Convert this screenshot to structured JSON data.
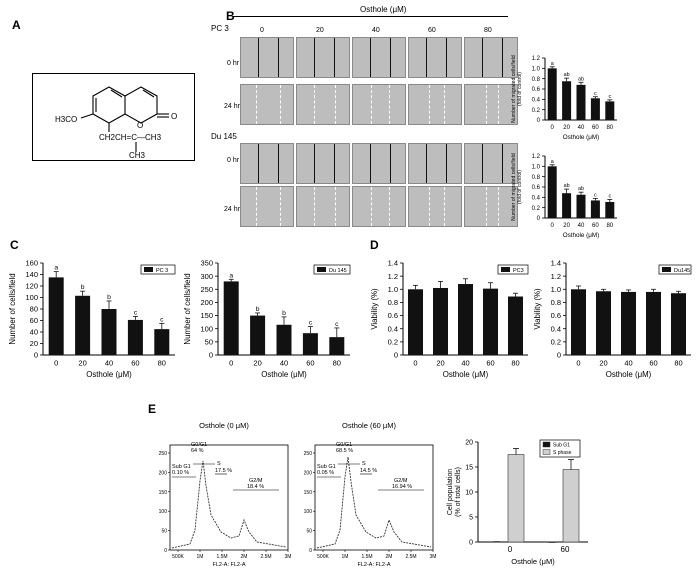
{
  "panels": {
    "A": "A",
    "B": "B",
    "C": "C",
    "D": "D",
    "E": "E"
  },
  "structure": {
    "left_group": "H3CO",
    "side_chain": "CH2CH=C—CH3",
    "methyl": "CH3",
    "carbonyl_O": "O",
    "ring_O": "O"
  },
  "wound": {
    "header": "Osthole (μM)",
    "concentrations": [
      "0",
      "20",
      "40",
      "60",
      "80"
    ],
    "cell_lines": [
      "PC 3",
      "Du 145"
    ],
    "times": [
      "0 hr",
      "24 hr"
    ]
  },
  "chart_data": [
    {
      "id": "B-PC3",
      "type": "bar",
      "categories": [
        "0",
        "20",
        "40",
        "60",
        "80"
      ],
      "values": [
        1.0,
        0.75,
        0.68,
        0.42,
        0.36
      ],
      "errors": [
        0.03,
        0.06,
        0.05,
        0.03,
        0.03
      ],
      "letters": [
        "a",
        "ab",
        "ab",
        "c",
        "c"
      ],
      "ylim": [
        0,
        1.2
      ],
      "yticks": [
        "0",
        "0.2",
        "0.4",
        "0.6",
        "0.8",
        "1.0",
        "1.2"
      ],
      "ylabel": "Number of migrated cells/field (fold of control)",
      "xlabel": "Osthole (μM)"
    },
    {
      "id": "B-Du145",
      "type": "bar",
      "categories": [
        "0",
        "20",
        "40",
        "60",
        "80"
      ],
      "values": [
        1.0,
        0.48,
        0.45,
        0.34,
        0.31
      ],
      "errors": [
        0.03,
        0.08,
        0.05,
        0.04,
        0.05
      ],
      "letters": [
        "a",
        "ab",
        "ab",
        "c",
        "c"
      ],
      "ylim": [
        0,
        1.2
      ],
      "yticks": [
        "0",
        "0.2",
        "0.4",
        "0.6",
        "0.8",
        "1.0",
        "1.2"
      ],
      "ylabel": "Number of migrated cells/field (fold of control)",
      "xlabel": "Osthole (μM)"
    },
    {
      "id": "C-PC3",
      "type": "bar",
      "legend": "PC 3",
      "categories": [
        "0",
        "20",
        "40",
        "60",
        "80"
      ],
      "values": [
        135,
        103,
        80,
        61,
        45
      ],
      "errors": [
        10,
        8,
        14,
        6,
        10
      ],
      "letters": [
        "a",
        "b",
        "b",
        "c",
        "c"
      ],
      "ylim": [
        0,
        160
      ],
      "yticks": [
        "0",
        "20",
        "40",
        "60",
        "80",
        "100",
        "120",
        "140",
        "160"
      ],
      "ylabel": "Number of cells/field",
      "xlabel": "Osthole (μM)"
    },
    {
      "id": "C-Du145",
      "type": "bar",
      "legend": "Du 145",
      "categories": [
        "0",
        "20",
        "40",
        "60",
        "80"
      ],
      "values": [
        280,
        150,
        115,
        83,
        68
      ],
      "errors": [
        8,
        10,
        30,
        25,
        35
      ],
      "letters": [
        "a",
        "b",
        "b",
        "c",
        "c"
      ],
      "ylim": [
        0,
        350
      ],
      "yticks": [
        "0",
        "50",
        "100",
        "150",
        "200",
        "250",
        "300",
        "350"
      ],
      "ylabel": "Number of cells/field",
      "xlabel": "Osthole (μM)"
    },
    {
      "id": "D-PC3",
      "type": "bar",
      "legend": "PC3",
      "categories": [
        "0",
        "20",
        "40",
        "60",
        "80"
      ],
      "values": [
        1.0,
        1.02,
        1.08,
        1.01,
        0.89
      ],
      "errors": [
        0.06,
        0.1,
        0.08,
        0.09,
        0.05
      ],
      "ylim": [
        0,
        1.4
      ],
      "yticks": [
        "0",
        "0.2",
        "0.4",
        "0.6",
        "0.8",
        "1.0",
        "1.2",
        "1.4"
      ],
      "ylabel": "Viability (%)",
      "xlabel": "Osthole (μM)"
    },
    {
      "id": "D-Du145",
      "type": "bar",
      "legend": "Du145",
      "categories": [
        "0",
        "20",
        "40",
        "60",
        "80"
      ],
      "values": [
        1.0,
        0.97,
        0.96,
        0.96,
        0.94
      ],
      "errors": [
        0.05,
        0.03,
        0.03,
        0.04,
        0.03
      ],
      "ylim": [
        0,
        1.4
      ],
      "yticks": [
        "0",
        "0.2",
        "0.4",
        "0.6",
        "0.8",
        "1.0",
        "1.2",
        "1.4"
      ],
      "ylabel": "Viability (%)",
      "xlabel": "Osthole (μM)"
    },
    {
      "id": "E-bar",
      "type": "bar",
      "categories": [
        "0",
        "60"
      ],
      "series": [
        {
          "name": "Sub G1",
          "values": [
            0.1,
            0.05
          ],
          "color": "#111111"
        },
        {
          "name": "S phase",
          "values": [
            17.5,
            14.5
          ],
          "errors": [
            1.2,
            2.0
          ],
          "color": "#cfcfcf"
        }
      ],
      "ylim": [
        0,
        20
      ],
      "yticks": [
        "0",
        "5",
        "10",
        "15",
        "20"
      ],
      "ylabel": "Cell population (% of total cells)",
      "xlabel": "Osthole (μM)"
    }
  ],
  "flow": [
    {
      "title": "Osthole (0 μM)",
      "g0g1": "G0/G1",
      "g0g1_pct": "64 %",
      "subg1": "Sub G1",
      "subg1_pct": "0.10 %",
      "s": "S",
      "s_pct": "17.5 %",
      "g2m": "G2/M",
      "g2m_pct": "18.4 %",
      "yticks": [
        "0",
        "50",
        "100",
        "150",
        "200",
        "250"
      ],
      "xticks": [
        "500K",
        "1M",
        "1.5M",
        "2M",
        "2.5M",
        "3M"
      ],
      "xlabel": "FL2-A: FL2-A"
    },
    {
      "title": "Osthole (60 μM)",
      "g0g1": "G0/G1",
      "g0g1_pct": "68.5 %",
      "subg1": "Sub G1",
      "subg1_pct": "0.05 %",
      "s": "S",
      "s_pct": "14.5 %",
      "g2m": "G2/M",
      "g2m_pct": "16.94 %",
      "yticks": [
        "0",
        "50",
        "100",
        "150",
        "200",
        "250"
      ],
      "xticks": [
        "500K",
        "1M",
        "1.5M",
        "2M",
        "2.5M",
        "3M"
      ],
      "xlabel": "FL2-A: FL2-A"
    }
  ]
}
